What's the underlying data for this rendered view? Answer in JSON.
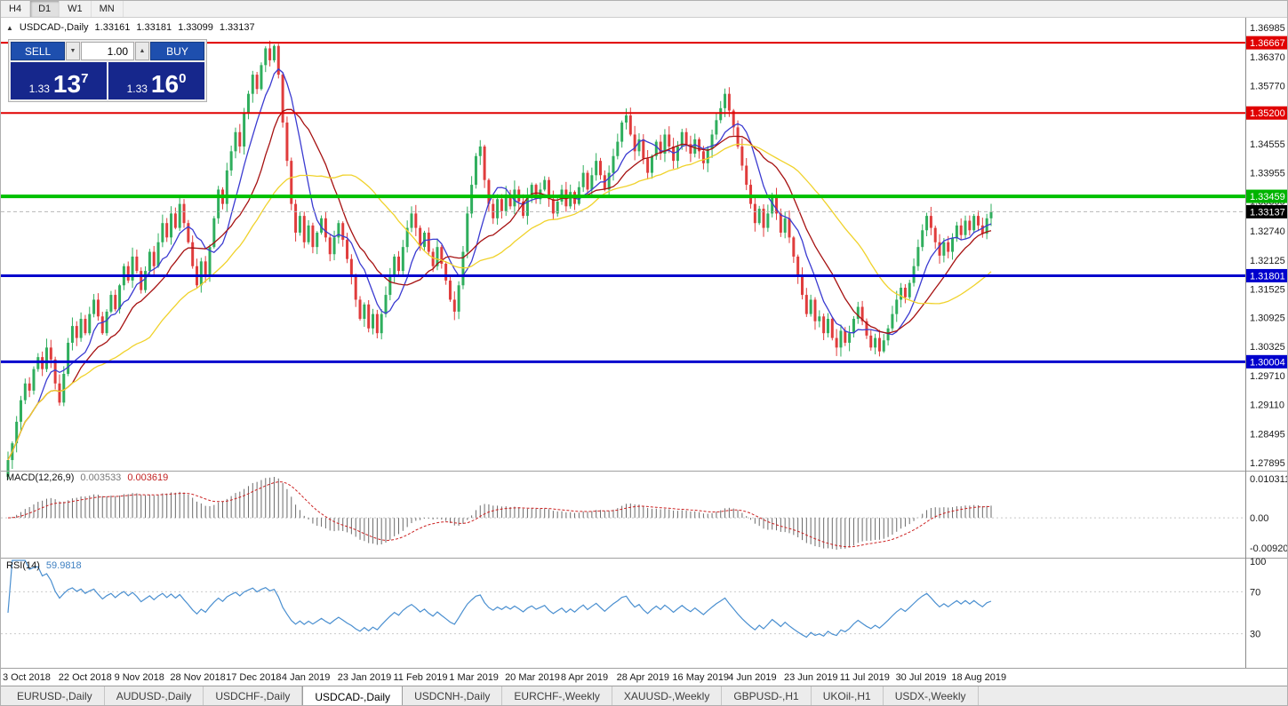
{
  "toolbar": {
    "timeframes": [
      {
        "label": "H4",
        "active": false
      },
      {
        "label": "D1",
        "active": true
      },
      {
        "label": "W1",
        "active": false
      },
      {
        "label": "MN",
        "active": false
      }
    ]
  },
  "symbol_line": {
    "collapse_icon": "▲",
    "title": "USDCAD-,Daily",
    "open": "1.33161",
    "high": "1.33181",
    "low": "1.33099",
    "close": "1.33137"
  },
  "trade_panel": {
    "sell_label": "SELL",
    "buy_label": "BUY",
    "volume": "1.00",
    "volume_down_icon": "▼",
    "volume_up_icon": "▲",
    "sell_price_prefix": "1.33",
    "sell_price_big": "13",
    "sell_price_sup": "7",
    "buy_price_prefix": "1.33",
    "buy_price_big": "16",
    "buy_price_sup": "0"
  },
  "macd_panel": {
    "name": "MACD(12,26,9)",
    "value_main": "0.003533",
    "value_signal": "0.003619",
    "axis_top": "0.010311",
    "axis_zero": "0.00",
    "axis_bottom": "-0.009203"
  },
  "rsi_panel": {
    "name": "RSI(14)",
    "value": "59.9818",
    "axis_top": "100",
    "axis_upper": "70",
    "axis_lower": "30"
  },
  "price_axis": {
    "ticks": [
      "1.36985",
      "1.36370",
      "1.35770",
      "1.35155",
      "1.34555",
      "1.33955",
      "1.33355",
      "1.32740",
      "1.32125",
      "1.31525",
      "1.30925",
      "1.30325",
      "1.29710",
      "1.29110",
      "1.28495",
      "1.27895"
    ],
    "line_labels": [
      {
        "price": 1.36667,
        "text": "1.36667",
        "color": "#e00000"
      },
      {
        "price": 1.352,
        "text": "1.35200",
        "color": "#e00000"
      },
      {
        "price": 1.33459,
        "text": "1.33459",
        "color": "#00b400"
      },
      {
        "price": 1.31801,
        "text": "1.31801",
        "color": "#0000cd"
      },
      {
        "price": 1.30004,
        "text": "1.30004",
        "color": "#0000cd"
      }
    ],
    "current_label": {
      "price": 1.33137,
      "text": "1.33137",
      "color": "#000000"
    }
  },
  "dates": {
    "step_bars": 13,
    "labels": [
      "3 Oct 2018",
      "22 Oct 2018",
      "9 Nov 2018",
      "28 Nov 2018",
      "17 Dec 2018",
      "4 Jan 2019",
      "23 Jan 2019",
      "11 Feb 2019",
      "1 Mar 2019",
      "20 Mar 2019",
      "8 Apr 2019",
      "28 Apr 2019",
      "16 May 2019",
      "4 Jun 2019",
      "23 Jun 2019",
      "11 Jul 2019",
      "30 Jul 2019",
      "18 Aug 2019"
    ]
  },
  "bottom_tabs": [
    {
      "label": "EURUSD-,Daily",
      "active": false
    },
    {
      "label": "AUDUSD-,Daily",
      "active": false
    },
    {
      "label": "USDCHF-,Daily",
      "active": false
    },
    {
      "label": "USDCAD-,Daily",
      "active": true
    },
    {
      "label": "USDCNH-,Daily",
      "active": false
    },
    {
      "label": "EURCHF-,Weekly",
      "active": false
    },
    {
      "label": "XAUUSD-,Weekly",
      "active": false
    },
    {
      "label": "GBPUSD-,H1",
      "active": false
    },
    {
      "label": "UKOil-,H1",
      "active": false
    },
    {
      "label": "USDX-,Weekly",
      "active": false
    }
  ],
  "chart_data": {
    "type": "candlestick",
    "title": "USDCAD-,Daily",
    "current_bar": {
      "open": 1.33161,
      "high": 1.33181,
      "low": 1.33099,
      "close": 1.33137
    },
    "ylim": [
      1.27895,
      1.36985
    ],
    "closes": [
      1.2795,
      1.283,
      1.2875,
      1.292,
      1.2955,
      1.294,
      1.2985,
      1.301,
      1.2985,
      1.303,
      1.3005,
      1.2955,
      1.2915,
      1.2975,
      1.304,
      1.3075,
      1.305,
      1.309,
      1.306,
      1.31,
      1.313,
      1.3095,
      1.306,
      1.3105,
      1.314,
      1.311,
      1.316,
      1.32,
      1.317,
      1.322,
      1.319,
      1.315,
      1.319,
      1.323,
      1.32,
      1.325,
      1.329,
      1.326,
      1.331,
      1.328,
      1.333,
      1.329,
      1.325,
      1.32,
      1.316,
      1.321,
      1.318,
      1.324,
      1.33,
      1.336,
      1.333,
      1.34,
      1.344,
      1.348,
      1.345,
      1.352,
      1.356,
      1.36,
      1.357,
      1.362,
      1.3655,
      1.363,
      1.366,
      1.36,
      1.35,
      1.342,
      1.333,
      1.327,
      1.3305,
      1.325,
      1.3285,
      1.324,
      1.327,
      1.33,
      1.326,
      1.3225,
      1.326,
      1.329,
      1.3255,
      1.3215,
      1.318,
      1.313,
      1.309,
      1.312,
      1.307,
      1.31,
      1.306,
      1.31,
      1.314,
      1.318,
      1.322,
      1.319,
      1.324,
      1.328,
      1.331,
      1.328,
      1.324,
      1.327,
      1.323,
      1.32,
      1.324,
      1.3205,
      1.317,
      1.313,
      1.3105,
      1.316,
      1.323,
      1.331,
      1.337,
      1.343,
      1.345,
      1.338,
      1.333,
      1.33,
      1.334,
      1.3315,
      1.335,
      1.3325,
      1.336,
      1.3335,
      1.3305,
      1.3345,
      1.337,
      1.334,
      1.336,
      1.338,
      1.334,
      1.331,
      1.3335,
      1.336,
      1.3325,
      1.3355,
      1.333,
      1.3365,
      1.3395,
      1.336,
      1.339,
      1.342,
      1.339,
      1.336,
      1.3395,
      1.343,
      1.346,
      1.35,
      1.3515,
      1.3475,
      1.344,
      1.3465,
      1.3425,
      1.3395,
      1.343,
      1.346,
      1.3435,
      1.3475,
      1.345,
      1.342,
      1.345,
      1.348,
      1.3455,
      1.3435,
      1.3465,
      1.344,
      1.3415,
      1.3445,
      1.3475,
      1.3505,
      1.353,
      1.356,
      1.3525,
      1.349,
      1.345,
      1.341,
      1.337,
      1.333,
      1.329,
      1.332,
      1.328,
      1.331,
      1.3345,
      1.331,
      1.327,
      1.33,
      1.326,
      1.322,
      1.318,
      1.314,
      1.31,
      1.313,
      1.3085,
      1.3095,
      1.306,
      1.309,
      1.305,
      1.303,
      1.3065,
      1.304,
      1.306,
      1.309,
      1.3115,
      1.3085,
      1.3055,
      1.303,
      1.305,
      1.3022,
      1.3045,
      1.307,
      1.31,
      1.313,
      1.3155,
      1.3135,
      1.3165,
      1.32,
      1.324,
      1.3275,
      1.3305,
      1.328,
      1.325,
      1.3222,
      1.325,
      1.323,
      1.3258,
      1.3285,
      1.3265,
      1.3295,
      1.3275,
      1.3305,
      1.3285,
      1.3268,
      1.33,
      1.33137
    ],
    "style": {
      "up_color": "#2fae5d",
      "down_color": "#e03c3c",
      "background": "#ffffff"
    },
    "moving_averages": [
      {
        "type": "SMA",
        "period": 8,
        "color": "#3b3bd1"
      },
      {
        "type": "SMA",
        "period": 16,
        "color": "#a61111"
      },
      {
        "type": "SMA",
        "period": 34,
        "color": "#f0d22b"
      }
    ],
    "horizontal_lines": [
      {
        "price": 1.36667,
        "color": "#e00000",
        "width": 2
      },
      {
        "price": 1.352,
        "color": "#e00000",
        "width": 2
      },
      {
        "price": 1.33459,
        "color": "#00c000",
        "width": 4
      },
      {
        "price": 1.31801,
        "color": "#0000cd",
        "width": 3
      },
      {
        "price": 1.30004,
        "color": "#0000cd",
        "width": 3
      }
    ],
    "bid_line": {
      "price": 1.33137,
      "color": "#b8b8b8"
    },
    "indicators": {
      "macd": {
        "fast": 12,
        "slow": 26,
        "signal_period": 9,
        "main_color": "#6b6b6b",
        "signal_color": "#cc2222",
        "range": [
          -0.009203,
          0.010311
        ]
      },
      "rsi": {
        "period": 14,
        "color": "#4a8fd0",
        "levels": [
          30,
          70
        ],
        "range": [
          0,
          100
        ]
      }
    }
  }
}
